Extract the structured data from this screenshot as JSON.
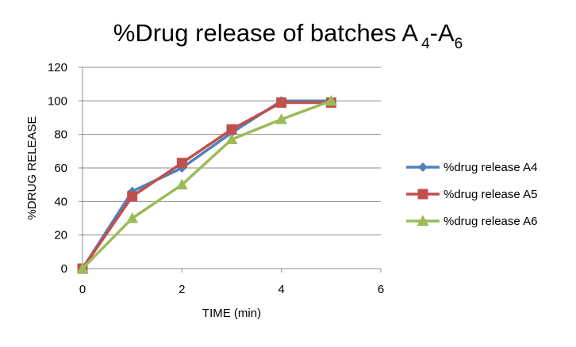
{
  "chart_data": {
    "type": "line",
    "title": {
      "main": "%Drug release of batches A",
      "sub1": "4",
      "dash": "-A",
      "sub2": "6"
    },
    "xlabel": "TIME (min)",
    "ylabel": "%DRUG RELEASE",
    "xlim": [
      0,
      6
    ],
    "ylim": [
      0,
      120
    ],
    "xticks": [
      0,
      2,
      4,
      6
    ],
    "yticks": [
      0,
      20,
      40,
      60,
      80,
      100,
      120
    ],
    "grid": "horizontal",
    "legend_position": "right",
    "x": [
      0,
      1,
      2,
      3,
      4,
      5
    ],
    "series": [
      {
        "name": "%drug release A4",
        "values": [
          0,
          46,
          60,
          81,
          100,
          100
        ],
        "color": "#4F81BD",
        "marker": "diamond"
      },
      {
        "name": "%drug release A5",
        "values": [
          0,
          43,
          63,
          83,
          99,
          99
        ],
        "color": "#C0504D",
        "marker": "square"
      },
      {
        "name": "%drug release A6",
        "values": [
          0,
          30,
          50,
          77,
          89,
          100
        ],
        "color": "#9BBB59",
        "marker": "triangle"
      }
    ]
  }
}
